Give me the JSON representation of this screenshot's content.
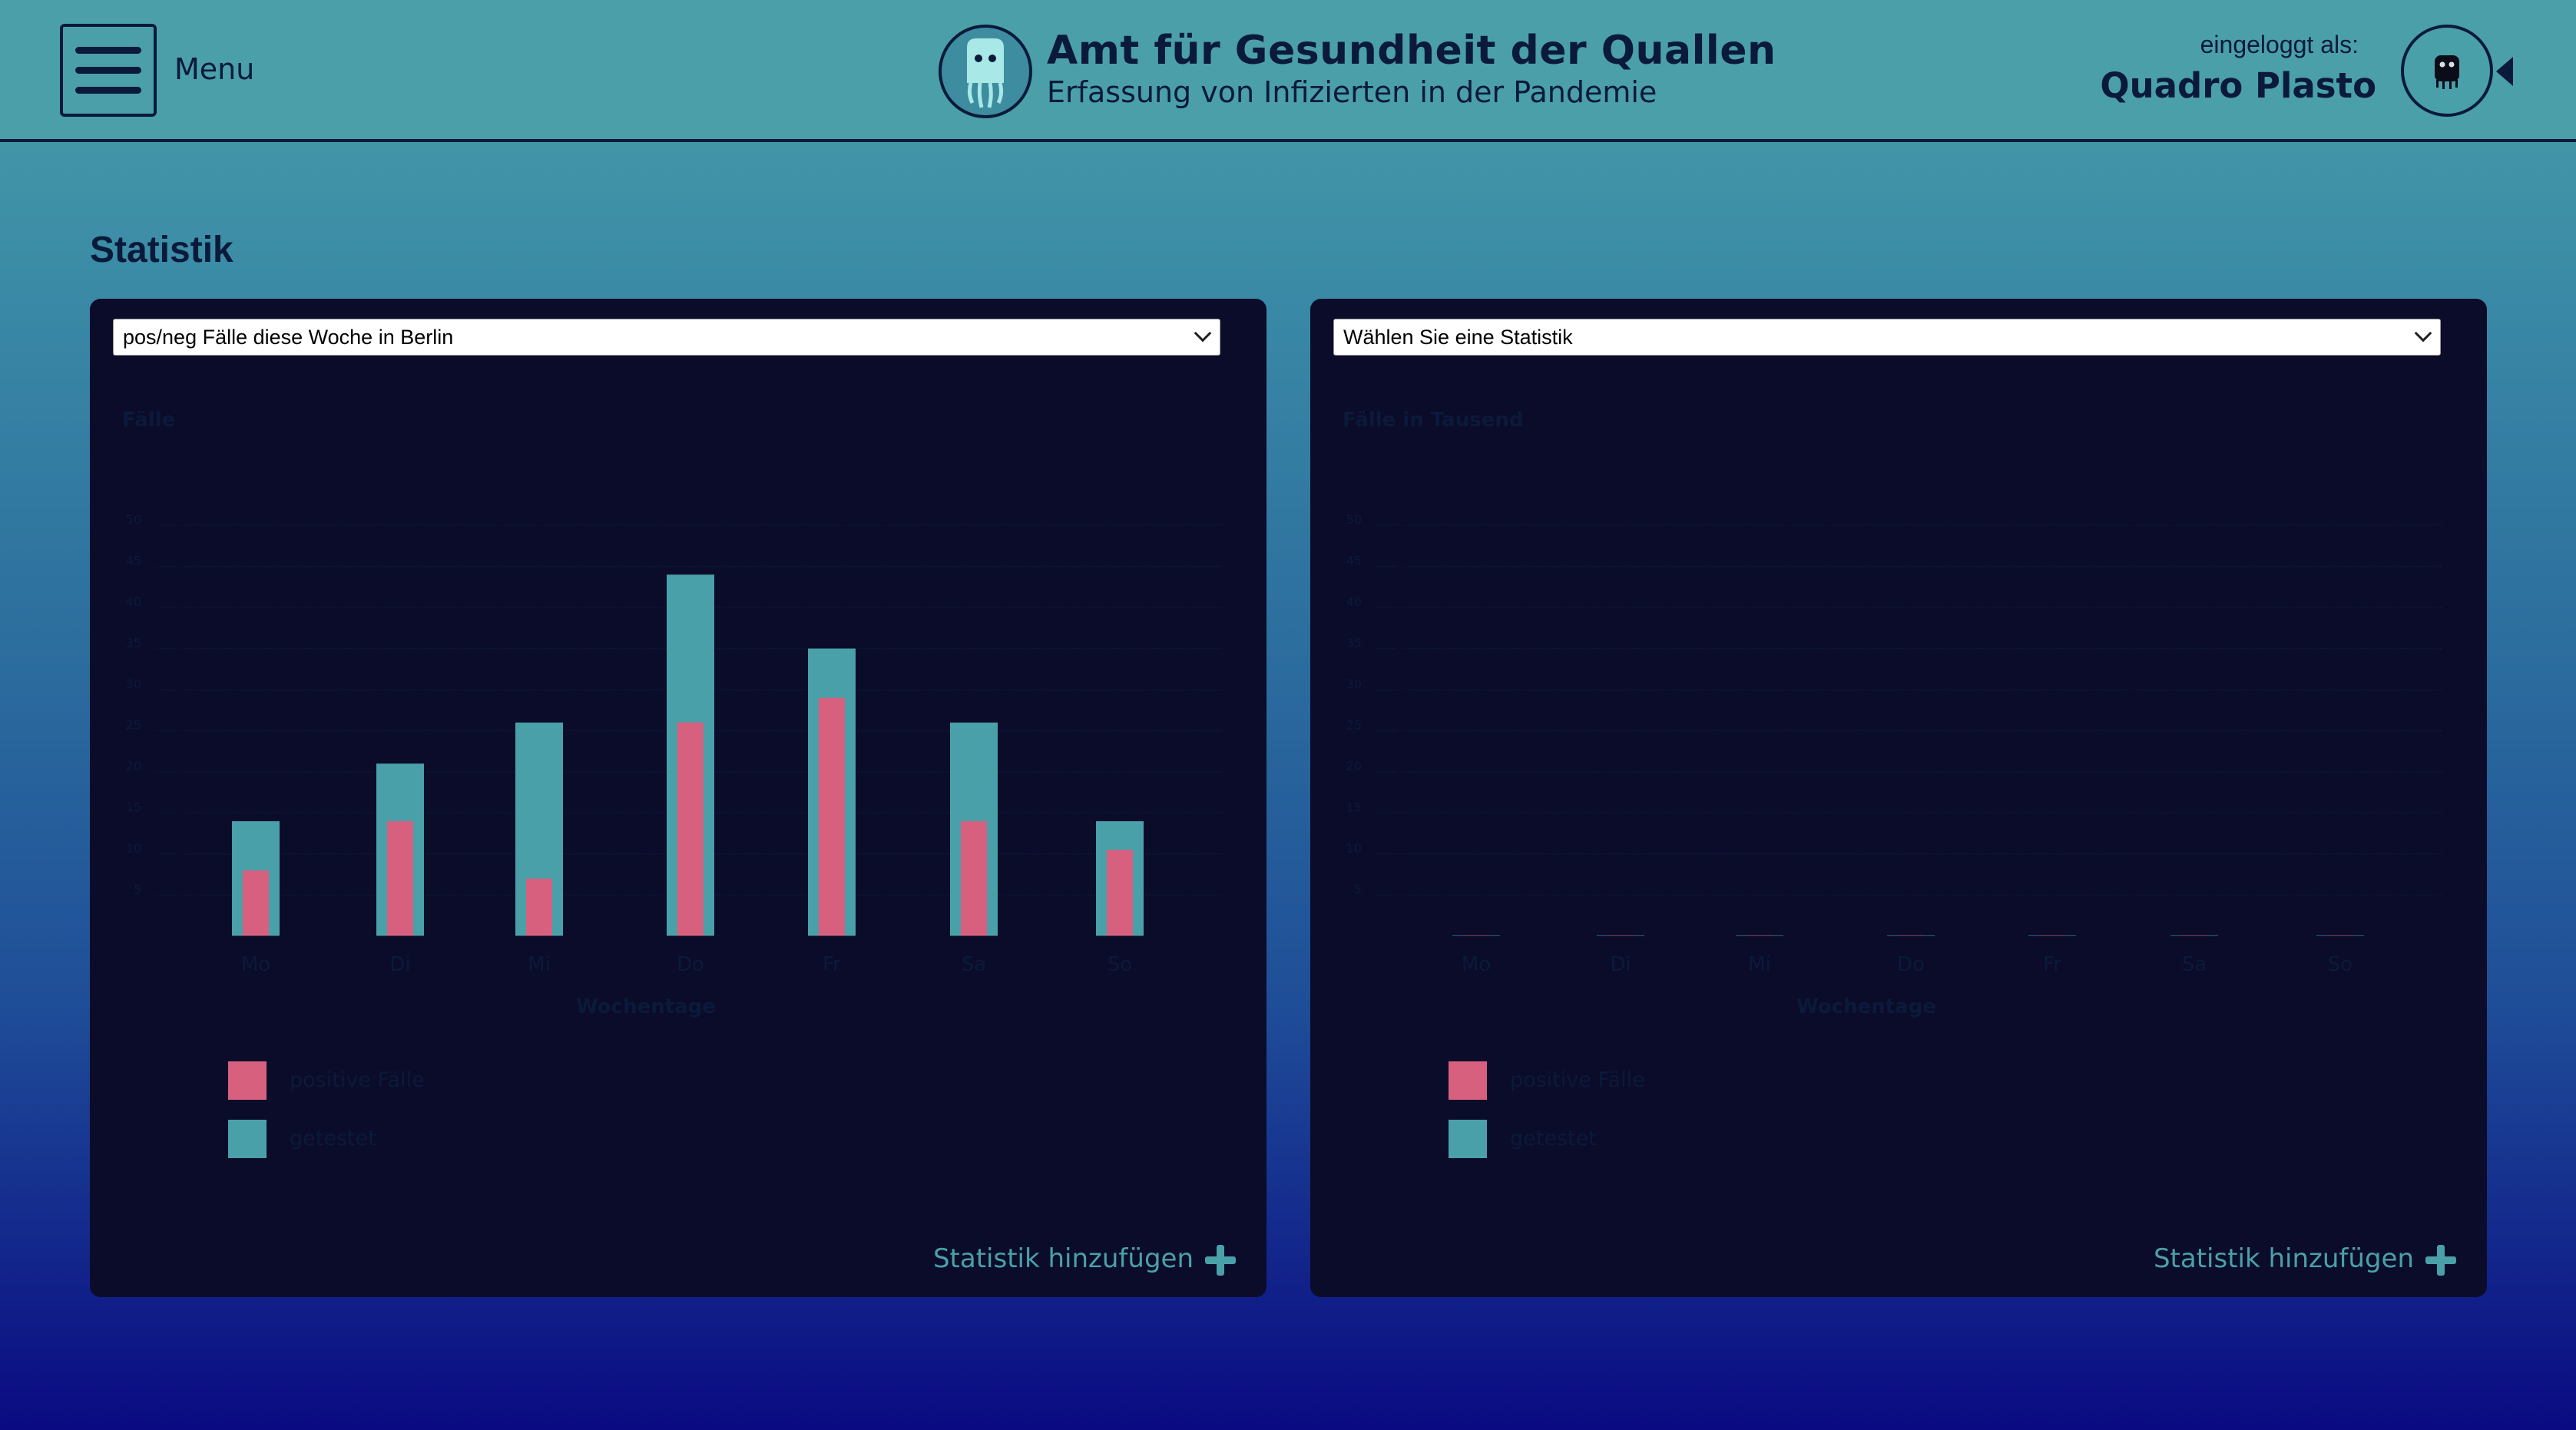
{
  "header": {
    "menu_label": "Menu",
    "title": "Amt für Gesundheit der Quallen",
    "subtitle": "Erfassung von Infizierten in der Pandemie",
    "login_label": "eingeloggt als:",
    "user_name": "Quadro Plasto"
  },
  "section_title": "Statistik",
  "colors": {
    "positive": "#d8607f",
    "tested": "#4aa0a8",
    "dark": "#0b1a3a"
  },
  "panels": [
    {
      "select_value": "pos/neg Fälle diese Woche in Berlin",
      "add_label": "Statistik hinzufügen",
      "chart_data": {
        "type": "bar",
        "ylabel": "Fälle",
        "xlabel": "Wochentage",
        "categories": [
          "Mo",
          "Di",
          "Mi",
          "Do",
          "Fr",
          "Sa",
          "So"
        ],
        "yticks": [
          "5",
          "10",
          "15",
          "20",
          "25",
          "30",
          "35",
          "40",
          "45",
          "50"
        ],
        "ylim": [
          0,
          50
        ],
        "grid": true,
        "series": [
          {
            "name": "positive Fälle",
            "values": [
              8,
              14,
              7,
              26,
              29,
              14,
              10.5
            ]
          },
          {
            "name": "getestet",
            "values": [
              14,
              21,
              26,
              44,
              35,
              26,
              14
            ]
          }
        ],
        "legend": [
          "positive Fälle",
          "getestet"
        ]
      }
    },
    {
      "select_value": "Wählen Sie eine Statistik",
      "add_label": "Statistik hinzufügen",
      "chart_data": {
        "type": "bar",
        "ylabel": "Fälle in Tausend",
        "xlabel": "Wochentage",
        "categories": [
          "Mo",
          "Di",
          "Mi",
          "Do",
          "Fr",
          "Sa",
          "So"
        ],
        "yticks": [
          "5",
          "10",
          "15",
          "20",
          "25",
          "30",
          "35",
          "40",
          "45",
          "50"
        ],
        "ylim": [
          0,
          50
        ],
        "grid": true,
        "series": [
          {
            "name": "positive Fälle",
            "values": [
              0.1,
              0.1,
              0.1,
              0.1,
              0.1,
              0.1,
              0.1
            ]
          },
          {
            "name": "getestet",
            "values": [
              0.1,
              0.1,
              0.1,
              0.1,
              0.1,
              0.1,
              0.1
            ]
          }
        ],
        "legend": [
          "positive Fälle",
          "getestet"
        ]
      }
    }
  ]
}
